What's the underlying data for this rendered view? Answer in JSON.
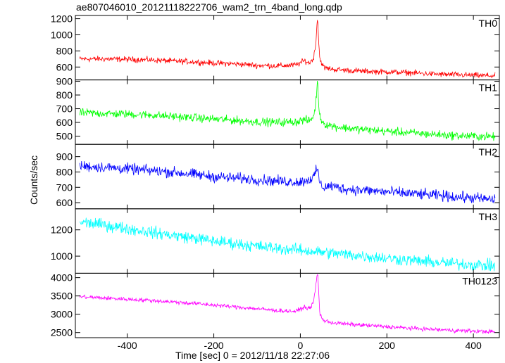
{
  "chart_data": {
    "title": "ae807046010_20121118222706_wam2_trn_4band_long.qdp",
    "xlabel": "Time [sec] 0 = 2012/11/18 22:27:06",
    "ylabel": "Counts/sec",
    "xlim": [
      -520,
      460
    ],
    "xticks": [
      -400,
      -200,
      0,
      200,
      400
    ],
    "panels": [
      {
        "type": "line",
        "name": "TH0",
        "color": "#ff0000",
        "ylim": [
          440,
          1240
        ],
        "yticks": [
          600,
          800,
          1000,
          1200
        ],
        "x": [
          -510,
          -450,
          -400,
          -350,
          -300,
          -250,
          -200,
          -150,
          -100,
          -50,
          -10,
          10,
          20,
          30,
          35,
          38,
          40,
          42,
          45,
          55,
          80,
          120,
          160,
          200,
          250,
          300,
          350,
          400,
          450
        ],
        "y": [
          700,
          700,
          695,
          690,
          675,
          665,
          650,
          640,
          620,
          615,
          625,
          680,
          650,
          700,
          850,
          1100,
          1230,
          950,
          700,
          590,
          570,
          555,
          545,
          540,
          530,
          515,
          505,
          498,
          490
        ],
        "noise": 35
      },
      {
        "type": "line",
        "name": "TH1",
        "color": "#00ff00",
        "ylim": [
          440,
          910
        ],
        "yticks": [
          500,
          600,
          700,
          800,
          900
        ],
        "x": [
          -510,
          -450,
          -400,
          -350,
          -300,
          -250,
          -200,
          -150,
          -100,
          -50,
          -10,
          10,
          20,
          30,
          35,
          38,
          40,
          42,
          45,
          55,
          80,
          120,
          160,
          200,
          250,
          300,
          350,
          400,
          450
        ],
        "y": [
          670,
          665,
          660,
          655,
          645,
          635,
          625,
          615,
          605,
          600,
          605,
          620,
          610,
          640,
          720,
          840,
          900,
          760,
          640,
          590,
          570,
          555,
          545,
          535,
          525,
          515,
          505,
          500,
          495
        ],
        "noise": 30
      },
      {
        "type": "line",
        "name": "TH2",
        "color": "#0000ff",
        "ylim": [
          560,
          980
        ],
        "yticks": [
          600,
          700,
          800,
          900
        ],
        "x": [
          -510,
          -450,
          -400,
          -350,
          -300,
          -250,
          -200,
          -150,
          -100,
          -50,
          0,
          30,
          40,
          45,
          55,
          70,
          100,
          150,
          200,
          250,
          300,
          350,
          400,
          450
        ],
        "y": [
          840,
          830,
          820,
          810,
          800,
          785,
          770,
          760,
          750,
          740,
          735,
          760,
          830,
          720,
          700,
          710,
          690,
          680,
          670,
          660,
          650,
          640,
          630,
          620
        ],
        "noise": 35
      },
      {
        "type": "line",
        "name": "TH3",
        "color": "#00ffff",
        "ylim": [
          870,
          1360
        ],
        "yticks": [
          1000,
          1200
        ],
        "x": [
          -510,
          -450,
          -400,
          -350,
          -300,
          -250,
          -200,
          -150,
          -100,
          -50,
          0,
          50,
          100,
          150,
          200,
          250,
          300,
          350,
          400,
          450
        ],
        "y": [
          1260,
          1235,
          1210,
          1185,
          1160,
          1140,
          1115,
          1095,
          1075,
          1060,
          1045,
          1030,
          1015,
          1000,
          985,
          970,
          955,
          945,
          935,
          925
        ],
        "noise": 45
      },
      {
        "type": "line",
        "name": "TH0123",
        "color": "#ff00ff",
        "ylim": [
          2360,
          4120
        ],
        "yticks": [
          2500,
          3000,
          3500,
          4000
        ],
        "x": [
          -510,
          -450,
          -400,
          -350,
          -300,
          -250,
          -200,
          -150,
          -100,
          -50,
          -10,
          10,
          20,
          30,
          35,
          38,
          40,
          42,
          45,
          55,
          80,
          120,
          160,
          200,
          250,
          300,
          350,
          400,
          450
        ],
        "y": [
          3480,
          3440,
          3410,
          3380,
          3340,
          3300,
          3250,
          3200,
          3150,
          3100,
          3080,
          3200,
          3150,
          3300,
          3700,
          4000,
          4150,
          3700,
          3000,
          2820,
          2760,
          2720,
          2690,
          2660,
          2620,
          2590,
          2560,
          2540,
          2520
        ],
        "noise": 55
      }
    ]
  }
}
